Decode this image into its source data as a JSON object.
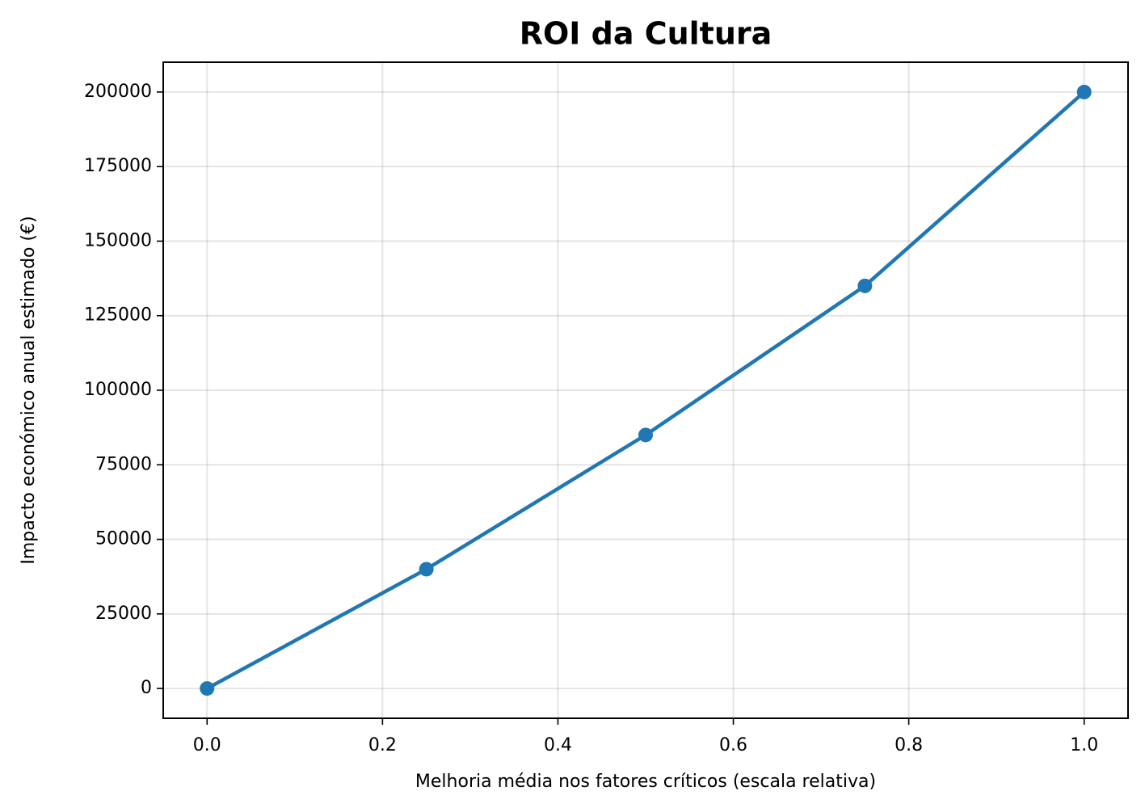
{
  "chart_data": {
    "type": "line",
    "title": "ROI da Cultura",
    "x_label": "Melhoria média nos fatores críticos (escala relativa)",
    "y_label": "Impacto económico anual estimado (€)",
    "x": [
      0,
      0.25,
      0.5,
      0.75,
      1.0
    ],
    "series": [
      {
        "name": "ROI",
        "color": "#1f77b4",
        "values": [
          0,
          40000,
          85000,
          135000,
          200000
        ]
      }
    ],
    "xlim": [
      -0.05,
      1.05
    ],
    "xticks": [
      {
        "value": 0,
        "label": "0.0"
      },
      {
        "value": 0.2,
        "label": "0.2"
      },
      {
        "value": 0.4,
        "label": "0.4"
      },
      {
        "value": 0.6,
        "label": "0.6"
      },
      {
        "value": 0.8,
        "label": "0.8"
      },
      {
        "value": 1.0,
        "label": "1.0"
      }
    ],
    "ylim": [
      -10000,
      210000
    ],
    "yticks": [
      0,
      25000,
      50000,
      75000,
      100000,
      125000,
      150000,
      175000,
      200000
    ],
    "grid": true
  }
}
